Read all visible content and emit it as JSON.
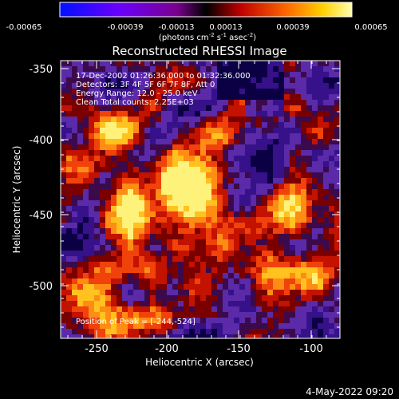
{
  "colorbar": {
    "ticks": [
      "-0.00065",
      "-0.00039",
      "-0.00013",
      "0.00013",
      "0.00039",
      "0.00065"
    ],
    "unit_label": "(photons cm",
    "unit_exp1": "-2",
    "unit_mid1": " s",
    "unit_exp2": "-1",
    "unit_mid2": " asec",
    "unit_exp3": "-2",
    "unit_end": ")"
  },
  "plot": {
    "title": "Reconstructed RHESSI Image",
    "info_lines": [
      "17-Dec-2002 01:26:36.000 to 01:32:36.000",
      "Detectors: 3F 4F 5F 6F 7F 8F, Att 0",
      "Energy Range: 12.0 - 25.0 keV",
      "Clean     Total counts: 2.25E+03"
    ],
    "peak_label": "Position of Peak = [-244,-524]",
    "xlabel": "Heliocentric X (arcsec)",
    "ylabel": "Heliocentric Y (arcsec)",
    "xticks": [
      "-250",
      "-200",
      "-150",
      "-100"
    ],
    "yticks": [
      "-350",
      "-400",
      "-450",
      "-500"
    ]
  },
  "footer": {
    "timestamp": "4-May-2022 09:20"
  },
  "colors": {
    "background": "#000000",
    "text": "#ffffff"
  }
}
